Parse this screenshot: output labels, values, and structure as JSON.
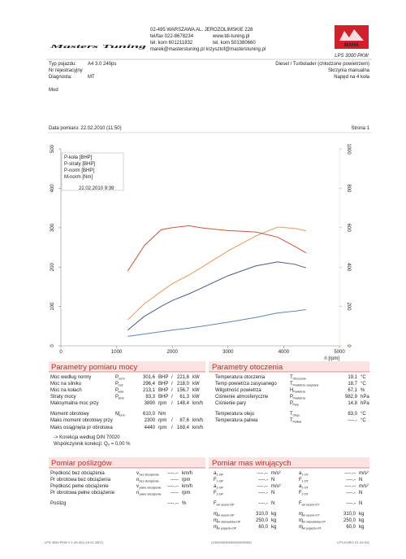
{
  "header": {
    "logo": "Masters Tuning",
    "address": [
      "02-495 WARSZAWA AL. JEROZOLIMSKIE 228",
      "tel/fax 022-8678234",
      "www.tdi-tuning.pl",
      "tel. kom 601211832",
      "tel. kom 501380660",
      "marek@masterstuning.pl  krzysztof@masterstuning.pl"
    ],
    "maha": "MAHA",
    "model": "LPS 3000 PKW"
  },
  "vehicle": {
    "left": [
      [
        "Typ pojazdu:",
        "A4 3.0 240ps"
      ],
      [
        "Nr rejestracyjny"
      ],
      [
        "Diagnosta:",
        "MT"
      ]
    ],
    "right": [
      "Diesel / Turbolader (chłodzone powietrzem)",
      "Skrzynia manualna",
      "Napęd na 4 koła"
    ],
    "mod": "Mod"
  },
  "measurement": {
    "date": "Data pomiaru: 22.02.2010 (11:50)",
    "page": "Strona 1"
  },
  "chart_data": {
    "type": "line",
    "x": [
      1200,
      1500,
      1800,
      2000,
      2300,
      2500,
      3000,
      3500,
      3890,
      4200,
      4400
    ],
    "series": [
      {
        "name": "P-koła [BHP]",
        "color": "#4a5a8c",
        "values": [
          40,
          75,
          100,
          115,
          132,
          145,
          178,
          203,
          213.1,
          207,
          198
        ]
      },
      {
        "name": "P-straty [BHP]",
        "color": "#5f86b8",
        "values": [
          24,
          30,
          36,
          40,
          45,
          49,
          60,
          72,
          83.3,
          88,
          92
        ]
      },
      {
        "name": "P-norm [BHP]",
        "color": "#ee9a5c",
        "values": [
          66,
          107,
          138,
          158,
          180,
          197,
          241,
          279,
          301.6,
          298,
          292
        ]
      },
      {
        "name": "M-norm [Nm]",
        "color": "#d2553a",
        "axis": "y2",
        "values": [
          380,
          510,
          590,
          600,
          610,
          600,
          585,
          578,
          552,
          505,
          472
        ]
      }
    ],
    "legend_note": "22.02.2010 9:39",
    "xlabel": "n [rpm]",
    "xlim": [
      0,
      5000
    ],
    "xticks": [
      0,
      1000,
      2000,
      3000,
      4000,
      5000
    ],
    "ylim": [
      0,
      500
    ],
    "yticks": [
      0,
      100,
      200,
      300,
      400,
      500
    ],
    "y2lim": [
      0,
      1000
    ],
    "y2ticks": [
      0,
      200,
      400,
      600,
      800,
      1000
    ],
    "y2color": "#e69a60"
  },
  "power": {
    "title": "Parametry pomiaru mocy",
    "rows": [
      {
        "label": "Moc według normy",
        "sym": "P",
        "sub": "norm",
        "v1": "301,6",
        "u1": "BHP",
        "sep": "/",
        "v2": "221,8",
        "u2": "kW",
        "color": "#d0302a"
      },
      {
        "label": "Moc na silniku",
        "sym": "P",
        "sub": "mot",
        "v1": "296,4",
        "u1": "BHP",
        "sep": "/",
        "v2": "218,0",
        "u2": "kW",
        "color": "#d0302a"
      },
      {
        "label": "Moc na kołach",
        "sym": "P",
        "sub": "koła",
        "v1": "213,1",
        "u1": "BHP",
        "sep": "/",
        "v2": "156,7",
        "u2": "kW",
        "color": "#3a62b0"
      },
      {
        "label": "Straty mocy",
        "sym": "P",
        "sub": "strat",
        "v1": "83,3",
        "u1": "BHP",
        "sep": "/",
        "v2": "61,3",
        "u2": "kW",
        "color": "#3a62b0"
      },
      {
        "label": "Maksymalna moc przy",
        "v1": "3890",
        "u1": "rpm",
        "sep": "/",
        "v2": "148,4",
        "u2": "km/h",
        "color": "#222222"
      },
      {
        "label": "Moment obrotowy",
        "sym": "M",
        "sub": "norm",
        "v1": "610,0",
        "u1": "Nm",
        "color": "#d0302a"
      },
      {
        "label": "Maks moment obrotowy przy",
        "v1": "2300",
        "u1": "rpm",
        "sep": "/",
        "v2": "87,6",
        "u2": "km/h",
        "color": "#222222"
      },
      {
        "label": "Maks osiągnięta pr obrotowa",
        "v1": "4440",
        "u1": "rpm",
        "sep": "/",
        "v2": "169,4",
        "u2": "km/h",
        "color": "#222222"
      }
    ],
    "notes": [
      "-> Korekcja według DIN 70020",
      "Współczynnik korekcji:  Qₒ =  0,00 %"
    ]
  },
  "environment": {
    "title": "Parametry otoczenia",
    "rows": [
      {
        "label": "Temperatura otoczenia",
        "sym": "T",
        "sub": "Otoczenia",
        "v1": "19,1",
        "u1": "°C"
      },
      {
        "label": "Temp powietrza zasysanego",
        "sym": "T",
        "sub": "Powietrze zasysane",
        "v1": "18,7",
        "u1": "°C"
      },
      {
        "label": "Wilgotność powietrza",
        "sym": "H",
        "sub": "Powietrza",
        "v1": "67,1",
        "u1": "%"
      },
      {
        "label": "Ciśnienie atmosferyczne",
        "sym": "P",
        "sub": "Powietrza",
        "v1": "982,9",
        "u1": "hPa"
      },
      {
        "label": "Ciśnienie pary",
        "sym": "P",
        "sub": "Pary",
        "v1": "14,8",
        "u1": "hPa"
      },
      {
        "label": "Temperatura oleju",
        "sym": "T",
        "sub": "Oleju",
        "v1": "83,0",
        "u1": "°C"
      },
      {
        "label": "Temperatura paliwa",
        "sym": "T",
        "sub": "Paliwa",
        "v1": "----.-",
        "u1": "°C"
      }
    ]
  },
  "slip": {
    "title": "Pomiar poślizgów",
    "rows": [
      {
        "label": "Prędkość bez obciążenia",
        "sym": "v",
        "sub": "bez obciążenia",
        "v1": "----.--",
        "u1": "km/h"
      },
      {
        "label": "Pr obrotowa bez obciążenia",
        "sym": "n",
        "sub": "bez obciążenia",
        "v1": "-----",
        "u1": "rpm"
      },
      {
        "label": "Prędkość pełne obciążenie",
        "sym": "v",
        "sub": "pełne obciążenie",
        "v1": "----.--",
        "u1": "km/h"
      },
      {
        "label": "Pr obrotowa pełne obciążenie",
        "sym": "n",
        "sub": "pełne obciążenie",
        "v1": "-----",
        "u1": "rpm"
      },
      {
        "label": "Poślizg",
        "v1": "----.--",
        "u1": "%"
      }
    ]
  },
  "masses": {
    "title": "Pomiar mas wirujących",
    "left": [
      {
        "sym": "a",
        "sub": "1-OP",
        "v1": "----.--",
        "u1": "m/s²"
      },
      {
        "sym": "F",
        "sub": "1-OP",
        "v1": "----.-",
        "u1": "N"
      },
      {
        "sym": "a",
        "sub": "2-OP",
        "v1": "----.--",
        "u1": "m/s²"
      },
      {
        "sym": "F",
        "sub": "2-OP",
        "v1": "----.-",
        "u1": "N"
      },
      {
        "sym": "F",
        "sub": "wir razem-OP",
        "v1": "----.-",
        "u1": "N"
      },
      {
        "sym": "m",
        "sub": "wir razem-OP",
        "v1": "310,0",
        "u1": "kg"
      },
      {
        "sym": "m",
        "sub": "wir stanowiska-OP",
        "v1": "250,0",
        "u1": "kg"
      },
      {
        "sym": "m",
        "sub": "wir pojazdu-OP",
        "v1": "60,0",
        "u1": "kg"
      }
    ],
    "right": [
      {
        "sym": "a",
        "sub": "1-OT",
        "v1": "----.--",
        "u1": "m/s²"
      },
      {
        "sym": "F",
        "sub": "1-OT",
        "v1": "----.-",
        "u1": "N"
      },
      {
        "sym": "a",
        "sub": "2-OT",
        "v1": "----.--",
        "u1": "m/s²"
      },
      {
        "sym": "F",
        "sub": "2-OT",
        "v1": "----.-",
        "u1": "N"
      },
      {
        "sym": "F",
        "sub": "wir razem-OT",
        "v1": "----.-",
        "u1": "N"
      },
      {
        "sym": "m",
        "sub": "wir razem-OT",
        "v1": "310,0",
        "u1": "kg"
      },
      {
        "sym": "m",
        "sub": "wir stanowiska-OT",
        "v1": "250,0",
        "u1": "kg"
      },
      {
        "sym": "m",
        "sub": "wir pojazdu-OT",
        "v1": "60,0",
        "u1": "kg"
      }
    ]
  },
  "footer": [
    "LPS 3000 PKW V 1.09.001 (19.02.2007)",
    "(100000000000000000000)",
    "LPS-EURO V1.24.001"
  ]
}
